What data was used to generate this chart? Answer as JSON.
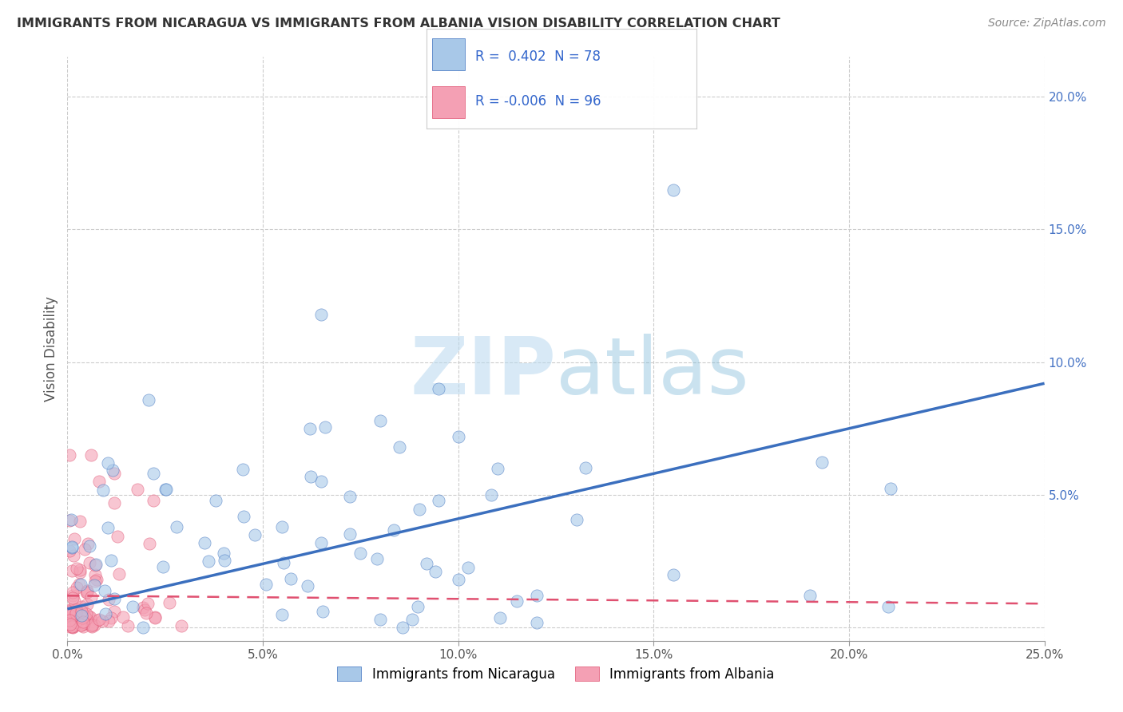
{
  "title": "IMMIGRANTS FROM NICARAGUA VS IMMIGRANTS FROM ALBANIA VISION DISABILITY CORRELATION CHART",
  "source": "Source: ZipAtlas.com",
  "ylabel": "Vision Disability",
  "xlim": [
    0.0,
    0.25
  ],
  "ylim": [
    -0.005,
    0.215
  ],
  "xtick_vals": [
    0.0,
    0.05,
    0.1,
    0.15,
    0.2,
    0.25
  ],
  "xtick_labels": [
    "0.0%",
    "5.0%",
    "10.0%",
    "15.0%",
    "20.0%",
    "25.0%"
  ],
  "ytick_vals": [
    0.0,
    0.05,
    0.1,
    0.15,
    0.2
  ],
  "ytick_labels": [
    "",
    "5.0%",
    "10.0%",
    "15.0%",
    "20.0%"
  ],
  "color_nicaragua": "#a8c8e8",
  "color_albania": "#f4a0b4",
  "color_nicaragua_line": "#3b6fbe",
  "color_albania_line": "#e05070",
  "color_legend_text": "#3366cc",
  "watermark_color": "#cce4f5",
  "background_color": "#ffffff",
  "grid_color": "#cccccc",
  "title_color": "#333333",
  "ylabel_color": "#555555",
  "ytick_color": "#4472c4",
  "xtick_color": "#555555",
  "source_color": "#888888",
  "nic_line_x0": 0.0,
  "nic_line_y0": 0.007,
  "nic_line_x1": 0.25,
  "nic_line_y1": 0.092,
  "alb_line_x0": 0.0,
  "alb_line_y0": 0.012,
  "alb_line_x1": 0.25,
  "alb_line_y1": 0.009,
  "scatter_size": 120,
  "scatter_alpha": 0.6
}
